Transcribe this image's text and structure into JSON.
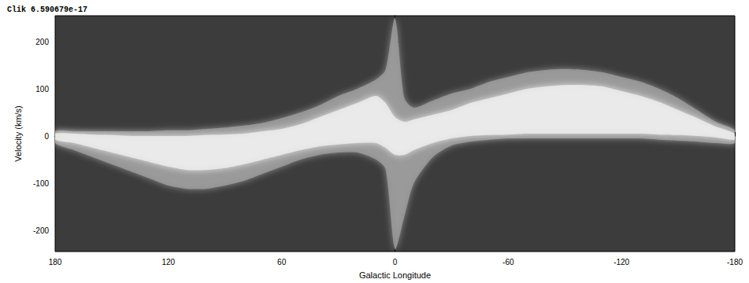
{
  "chart_data": {
    "type": "area_range",
    "title": "Clik 6.590679e-17",
    "x_label": "Galactic Longitude",
    "y_label": "Velocity (km/s)",
    "x": [
      180,
      170,
      160,
      150,
      140,
      130,
      120,
      110,
      100,
      90,
      80,
      70,
      60,
      50,
      40,
      30,
      20,
      10,
      5,
      0,
      -5,
      -10,
      -20,
      -30,
      -40,
      -50,
      -60,
      -70,
      -80,
      -90,
      -100,
      -110,
      -120,
      -130,
      -140,
      -150,
      -160,
      -170,
      -180
    ],
    "series": [
      {
        "color": "#9c9c9c",
        "upper": [
          10,
          10,
          10,
          10,
          10,
          10,
          12,
          12,
          15,
          18,
          22,
          28,
          38,
          50,
          65,
          85,
          100,
          120,
          140,
          250,
          80,
          60,
          75,
          90,
          100,
          115,
          125,
          135,
          140,
          142,
          140,
          135,
          125,
          115,
          100,
          80,
          55,
          30,
          12
        ],
        "lower": [
          -15,
          -30,
          -45,
          -60,
          -75,
          -90,
          -105,
          -112,
          -112,
          -105,
          -95,
          -80,
          -65,
          -50,
          -40,
          -35,
          -35,
          -50,
          -70,
          -240,
          -170,
          -100,
          -45,
          -20,
          -12,
          -8,
          -5,
          -5,
          -5,
          -5,
          -5,
          -5,
          -5,
          -5,
          -8,
          -10,
          -12,
          -15,
          -15
        ]
      },
      {
        "color": "#ececec",
        "upper": [
          5,
          5,
          3,
          2,
          0,
          0,
          0,
          0,
          2,
          3,
          5,
          10,
          15,
          25,
          40,
          55,
          70,
          85,
          70,
          40,
          30,
          35,
          45,
          55,
          70,
          80,
          90,
          100,
          105,
          108,
          108,
          105,
          95,
          85,
          72,
          55,
          38,
          20,
          5
        ],
        "lower": [
          -8,
          -15,
          -25,
          -35,
          -45,
          -55,
          -65,
          -72,
          -72,
          -68,
          -60,
          -50,
          -40,
          -30,
          -22,
          -18,
          -15,
          -15,
          -25,
          -40,
          -40,
          -30,
          -15,
          -5,
          0,
          2,
          3,
          5,
          5,
          5,
          5,
          5,
          5,
          5,
          3,
          2,
          0,
          -3,
          -8
        ]
      }
    ],
    "xlim": [
      180,
      -180
    ],
    "ylim": [
      -245,
      255
    ],
    "xticks": [
      180,
      120,
      60,
      0,
      -60,
      -120,
      -180
    ],
    "yticks": [
      -200,
      -100,
      0,
      100,
      200
    ],
    "grid": false
  }
}
